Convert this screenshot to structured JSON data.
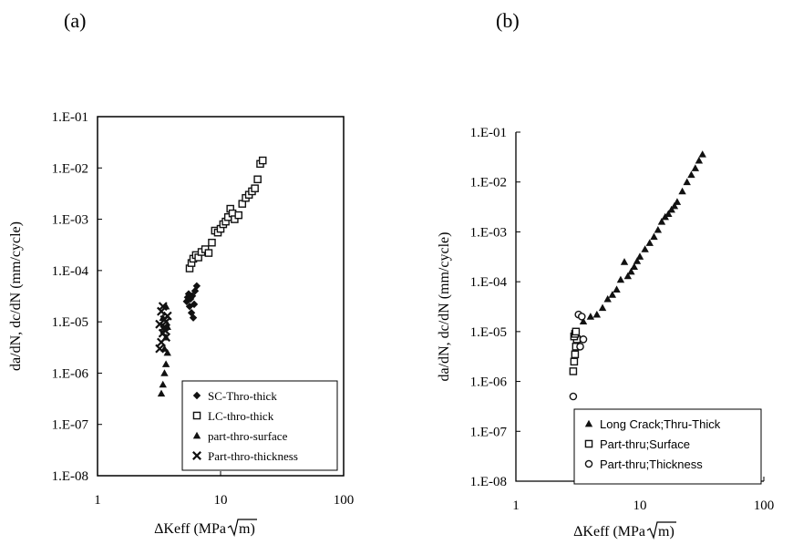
{
  "chart_data": [
    {
      "panel_label": "(a)",
      "type": "scatter",
      "xscale": "log",
      "yscale": "log",
      "xlim": [
        1,
        100
      ],
      "ylim": [
        1e-08,
        0.1
      ],
      "xticks": [
        "1",
        "10",
        "100"
      ],
      "yticks": [
        "1.E-08",
        "1.E-07",
        "1.E-06",
        "1.E-05",
        "1.E-04",
        "1.E-03",
        "1.E-02",
        "1.E-01"
      ],
      "xlabel_pre": "ΔKeff (MPa",
      "xlabel_post": "m)",
      "ylabel": "da/dN, dc/dN (mm/cycle)",
      "legend_position": "bottom-right",
      "series": [
        {
          "name": "SC-Thro-thick",
          "marker": "diamond",
          "x": [
            5.3,
            5.4,
            5.5,
            5.6,
            5.8,
            6.0,
            6.2,
            6.4,
            5.7,
            5.9,
            6.1
          ],
          "y": [
            2.5e-05,
            3e-05,
            3.5e-05,
            2e-05,
            1.5e-05,
            1.2e-05,
            4e-05,
            5e-05,
            2.8e-05,
            3.2e-05,
            2.2e-05
          ]
        },
        {
          "name": "LC-thro-thick",
          "marker": "open-square",
          "x": [
            5.6,
            5.8,
            6.0,
            6.3,
            6.6,
            7.0,
            7.5,
            8.0,
            8.5,
            9.0,
            9.5,
            10.0,
            10.5,
            11.0,
            11.5,
            12.0,
            12.5,
            13.0,
            14.0,
            15.0,
            16.0,
            17.0,
            18.0,
            19.0,
            20.0,
            21.0,
            22.0
          ],
          "y": [
            0.00011,
            0.00014,
            0.00017,
            0.0002,
            0.00018,
            0.00023,
            0.00026,
            0.00022,
            0.00035,
            0.0006,
            0.00055,
            0.00065,
            0.0008,
            0.0009,
            0.0011,
            0.0016,
            0.0013,
            0.001,
            0.0012,
            0.002,
            0.0026,
            0.003,
            0.0035,
            0.004,
            0.006,
            0.012,
            0.014
          ]
        },
        {
          "name": "part-thro-surface",
          "marker": "triangle",
          "x": [
            3.3,
            3.4,
            3.5,
            3.6,
            3.7,
            3.5,
            3.6,
            3.7,
            3.4,
            3.6
          ],
          "y": [
            4e-07,
            6e-07,
            1e-06,
            1.5e-06,
            2.5e-06,
            3e-06,
            5e-06,
            8e-06,
            1.2e-05,
            2e-05
          ],
          "comment": ""
        },
        {
          "name": "Part-thro-thickness",
          "marker": "cross",
          "x": [
            3.2,
            3.3,
            3.4,
            3.5,
            3.6,
            3.7,
            3.3,
            3.4,
            3.5,
            3.6,
            3.2,
            3.5
          ],
          "y": [
            3e-06,
            4e-06,
            6e-06,
            8e-06,
            1e-05,
            1.3e-05,
            1.6e-05,
            2e-05,
            7e-06,
            5e-06,
            9e-06,
            1.1e-05
          ]
        }
      ],
      "colors": {
        "marker": "#111111",
        "frame": "#000000"
      }
    },
    {
      "panel_label": "(b)",
      "type": "scatter",
      "xscale": "log",
      "yscale": "log",
      "xlim": [
        1,
        100
      ],
      "ylim": [
        1e-08,
        0.1
      ],
      "xticks": [
        "1",
        "10",
        "100"
      ],
      "yticks": [
        "1.E-08",
        "1.E-07",
        "1.E-06",
        "1.E-05",
        "1.E-04",
        "1.E-03",
        "1.E-02",
        "1.E-01"
      ],
      "xlabel_pre": "ΔKeff (MPa",
      "xlabel_post": "m)",
      "ylabel": "da/dN, dc/dN (mm/cycle)",
      "legend_position": "bottom-right",
      "series": [
        {
          "name": "Long Crack;Thru-Thick",
          "marker": "triangle",
          "x": [
            3.5,
            4.0,
            4.5,
            5.0,
            5.5,
            6.0,
            6.5,
            7.0,
            7.5,
            8.0,
            8.5,
            9.0,
            9.5,
            10.0,
            11.0,
            12.0,
            13.0,
            14.0,
            15.0,
            16.0,
            17.0,
            18.0,
            19.0,
            20.0,
            22.0,
            24.0,
            26.0,
            28.0,
            30.0,
            32.0
          ],
          "y": [
            1.6e-05,
            2e-05,
            2.2e-05,
            3e-05,
            4.5e-05,
            5.5e-05,
            7e-05,
            0.00011,
            0.00025,
            0.00013,
            0.00016,
            0.0002,
            0.00026,
            0.00032,
            0.00045,
            0.0006,
            0.0008,
            0.0011,
            0.0016,
            0.002,
            0.0023,
            0.0028,
            0.0033,
            0.004,
            0.0065,
            0.01,
            0.014,
            0.019,
            0.027,
            0.036
          ]
        },
        {
          "name": "Part-thru;Surface",
          "marker": "open-square",
          "x": [
            2.9,
            2.95,
            3.0,
            3.05,
            3.1,
            2.95,
            3.0,
            3.05
          ],
          "y": [
            1.6e-06,
            2.5e-06,
            3.5e-06,
            5e-06,
            7e-06,
            8e-06,
            9e-06,
            1e-05
          ]
        },
        {
          "name": "Part-thru;Thickness",
          "marker": "open-circle",
          "x": [
            2.9,
            3.2,
            3.4,
            3.5,
            3.3
          ],
          "y": [
            5e-07,
            2.2e-05,
            2e-05,
            7e-06,
            5e-06
          ]
        }
      ],
      "colors": {
        "marker": "#111111",
        "frame": "#000000"
      }
    }
  ]
}
